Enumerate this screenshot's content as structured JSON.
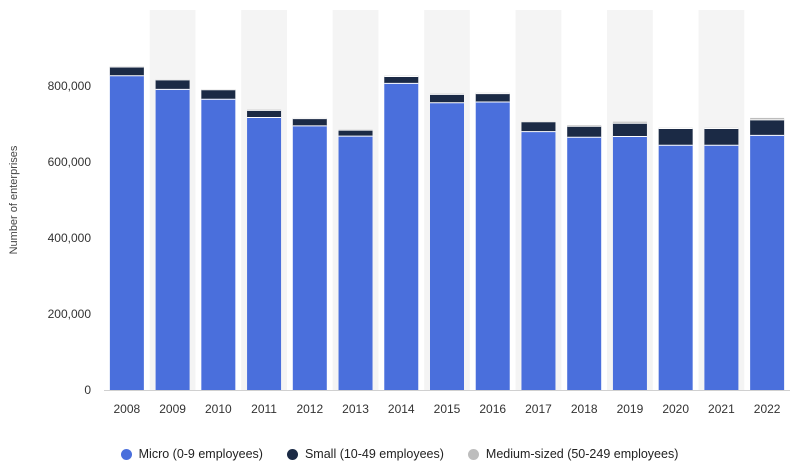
{
  "chart_data": {
    "type": "bar",
    "stacked": true,
    "categories": [
      "2008",
      "2009",
      "2010",
      "2011",
      "2012",
      "2013",
      "2014",
      "2015",
      "2016",
      "2017",
      "2018",
      "2019",
      "2020",
      "2021",
      "2022"
    ],
    "series": [
      {
        "name": "Micro (0-9 employees)",
        "color": "#4a6fdc",
        "values": [
          827000,
          791000,
          765000,
          717000,
          695000,
          668000,
          807000,
          756000,
          758000,
          680000,
          665000,
          667000,
          644000,
          644000,
          670000
        ]
      },
      {
        "name": "Small (10-49 employees)",
        "color": "#1b2a45",
        "values": [
          23000,
          25000,
          25000,
          19000,
          19000,
          16000,
          18000,
          22000,
          22000,
          26000,
          29000,
          35000,
          44000,
          44000,
          41000
        ]
      },
      {
        "name": "Medium-sized (50-249 employees)",
        "color": "#bdbdbd",
        "values": [
          2000,
          2000,
          2000,
          2000,
          2000,
          2000,
          2000,
          2000,
          2000,
          2000,
          3000,
          4000,
          2000,
          2000,
          5000
        ]
      }
    ],
    "ylabel": "Number of enterprises",
    "xlabel": "",
    "ylim": [
      0,
      1000000
    ],
    "yticks": [
      0,
      200000,
      400000,
      600000,
      800000
    ],
    "ytick_labels": [
      "0",
      "200,000",
      "400,000",
      "600,000",
      "800,000"
    ],
    "grid": false,
    "legend_position": "bottom"
  }
}
